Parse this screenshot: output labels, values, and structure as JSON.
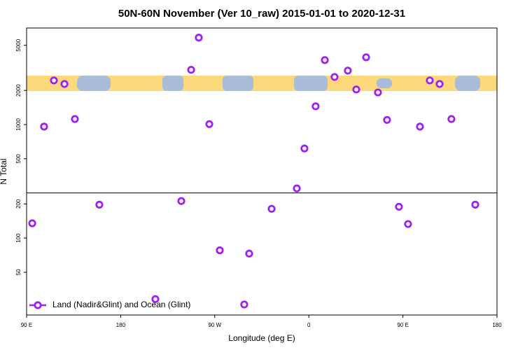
{
  "chart_data": {
    "type": "scatter",
    "title": "50N-60N November (Ver 10_raw)   2015-01-01 to 2020-12-31",
    "x_label": "Longitude (deg E)",
    "y_label": "N Total",
    "log_y": true,
    "grid": false,
    "legend": "bottom-left",
    "separator": 250,
    "xlim": [
      90,
      540
    ],
    "xticks": [
      {
        "value": 90,
        "label": "90 E"
      },
      180,
      {
        "value": 270,
        "label": "90 W"
      },
      {
        "value": 360,
        "label": "0"
      },
      {
        "value": 450,
        "label": "90 E"
      },
      {
        "value": 540,
        "label": "180"
      }
    ],
    "ylim": [
      21,
      7100
    ],
    "yticks": [
      50,
      100,
      200,
      500,
      1000,
      2000,
      5000
    ],
    "series": [
      {
        "name": "Land (Nadir&Glint) and Ocean (Glint)",
        "color": "#a020f0",
        "x": [
          95.4,
          106.7,
          116.1,
          126.2,
          136.2,
          159.6,
          213.2,
          238,
          247.4,
          254.7,
          264.8,
          274.8,
          298.2,
          302.9,
          324.4,
          348.5,
          355.8,
          366.5,
          375.3,
          384.6,
          397.3,
          405.4,
          414.8,
          426.1,
          434.8,
          446.2,
          454.9,
          466.3,
          475.7,
          485.1,
          496.4,
          519.2
        ],
        "values": [
          135,
          960,
          2450,
          2280,
          1120,
          197,
          29,
          212,
          3040,
          5840,
          1010,
          78,
          26,
          73,
          181,
          274,
          616,
          1450,
          3700,
          2630,
          2990,
          2040,
          3920,
          1920,
          1100,
          189,
          133,
          960,
          2450,
          2280,
          1120,
          197
        ]
      }
    ]
  }
}
